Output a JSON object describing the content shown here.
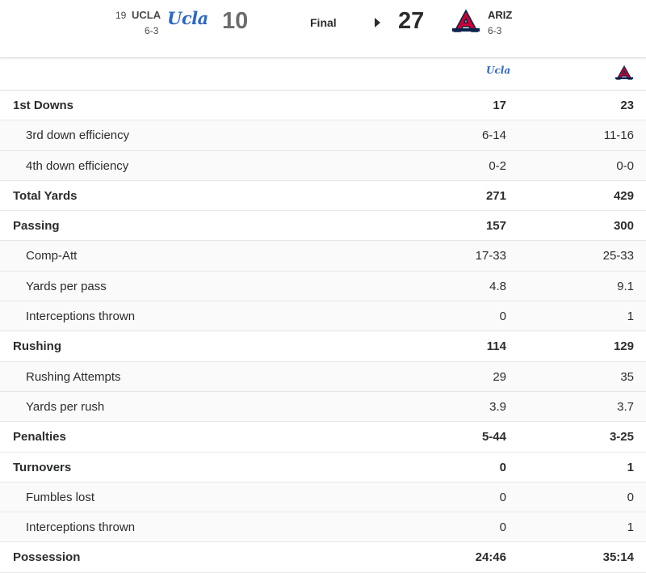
{
  "away": {
    "rank": "19",
    "abbr": "UCLA",
    "record": "6-3",
    "logo_text": "Ucla",
    "score": "10"
  },
  "home": {
    "abbr": "ARIZ",
    "record": "6-3",
    "score": "27"
  },
  "status": "Final",
  "colors": {
    "ucla_blue": "#2d68c4",
    "arizona_red": "#cc0033",
    "arizona_navy": "#0c234b"
  },
  "stats": [
    {
      "label": "1st Downs",
      "type": "main",
      "ucla": "17",
      "ariz": "23"
    },
    {
      "label": "3rd down efficiency",
      "type": "sub",
      "ucla": "6-14",
      "ariz": "11-16"
    },
    {
      "label": "4th down efficiency",
      "type": "sub",
      "ucla": "0-2",
      "ariz": "0-0"
    },
    {
      "label": "Total Yards",
      "type": "main",
      "ucla": "271",
      "ariz": "429"
    },
    {
      "label": "Passing",
      "type": "main",
      "ucla": "157",
      "ariz": "300"
    },
    {
      "label": "Comp-Att",
      "type": "sub",
      "ucla": "17-33",
      "ariz": "25-33"
    },
    {
      "label": "Yards per pass",
      "type": "sub",
      "ucla": "4.8",
      "ariz": "9.1"
    },
    {
      "label": "Interceptions thrown",
      "type": "sub",
      "ucla": "0",
      "ariz": "1"
    },
    {
      "label": "Rushing",
      "type": "main",
      "ucla": "114",
      "ariz": "129"
    },
    {
      "label": "Rushing Attempts",
      "type": "sub",
      "ucla": "29",
      "ariz": "35"
    },
    {
      "label": "Yards per rush",
      "type": "sub",
      "ucla": "3.9",
      "ariz": "3.7"
    },
    {
      "label": "Penalties",
      "type": "main",
      "ucla": "5-44",
      "ariz": "3-25"
    },
    {
      "label": "Turnovers",
      "type": "main",
      "ucla": "0",
      "ariz": "1"
    },
    {
      "label": "Fumbles lost",
      "type": "sub",
      "ucla": "0",
      "ariz": "0"
    },
    {
      "label": "Interceptions thrown",
      "type": "sub",
      "ucla": "0",
      "ariz": "1"
    },
    {
      "label": "Possession",
      "type": "main",
      "ucla": "24:46",
      "ariz": "35:14"
    }
  ]
}
